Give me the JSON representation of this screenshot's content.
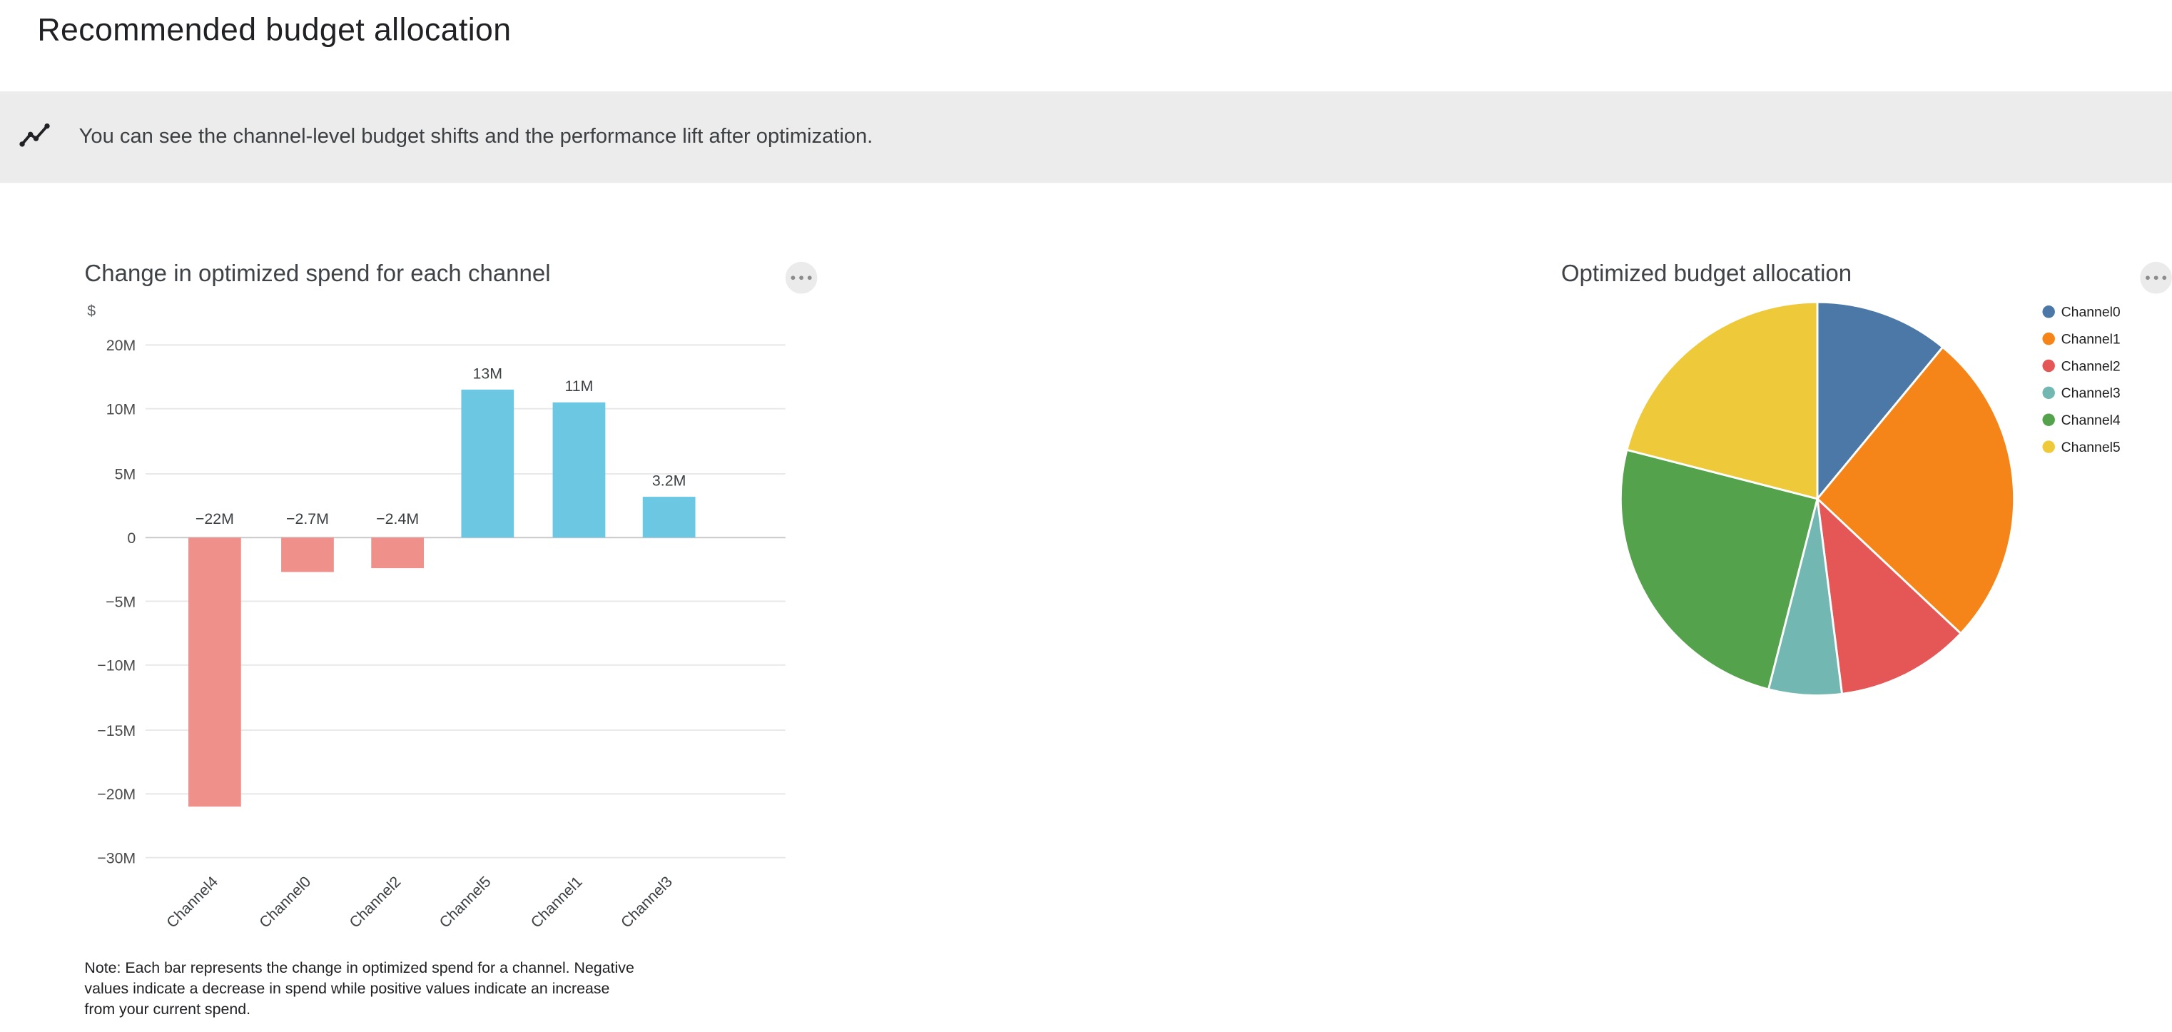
{
  "page": {
    "title": "Recommended budget allocation",
    "banner": {
      "icon": "insights-icon",
      "text": "You can see the channel-level budget shifts and the performance lift after optimization.",
      "background": "#ececec"
    }
  },
  "chart_data": [
    {
      "type": "bar",
      "title": "Change in optimized spend for each channel",
      "ylabel": "$",
      "categories": [
        "Channel4",
        "Channel0",
        "Channel2",
        "Channel5",
        "Channel1",
        "Channel3"
      ],
      "values": [
        -22,
        -2.7,
        -2.4,
        13,
        11,
        3.2
      ],
      "units": "millions USD",
      "bar_labels": [
        "−22M",
        "−2.7M",
        "−2.4M",
        "13M",
        "11M",
        "3.2M"
      ],
      "y_ticks": [
        {
          "value": 20,
          "label": "20M"
        },
        {
          "value": 10,
          "label": "10M"
        },
        {
          "value": 5,
          "label": "5M"
        },
        {
          "value": 0,
          "label": "0"
        },
        {
          "value": -5,
          "label": "−5M"
        },
        {
          "value": -10,
          "label": "−10M"
        },
        {
          "value": -15,
          "label": "−15M"
        },
        {
          "value": -20,
          "label": "−20M"
        },
        {
          "value": -30,
          "label": "−30M"
        }
      ],
      "positive_color": "#6cc8e2",
      "negative_color": "#ef908a",
      "grid": true,
      "legend_position": "none",
      "note": "Note: Each bar represents the change in optimized spend for a channel. Negative values indicate a decrease in spend while positive values indicate an increase from your current spend.",
      "menu_icon": "more-options-icon"
    },
    {
      "type": "pie",
      "title": "Optimized budget allocation",
      "legend_position": "right",
      "slices": [
        {
          "label": "Channel0",
          "value": 11,
          "color": "#4c78a8"
        },
        {
          "label": "Channel1",
          "value": 26,
          "color": "#f58518"
        },
        {
          "label": "Channel2",
          "value": 11,
          "color": "#e45756"
        },
        {
          "label": "Channel3",
          "value": 6,
          "color": "#72b7b2"
        },
        {
          "label": "Channel4",
          "value": 25,
          "color": "#54a24b"
        },
        {
          "label": "Channel5",
          "value": 21,
          "color": "#eeca3b"
        }
      ],
      "menu_icon": "more-options-icon"
    }
  ]
}
